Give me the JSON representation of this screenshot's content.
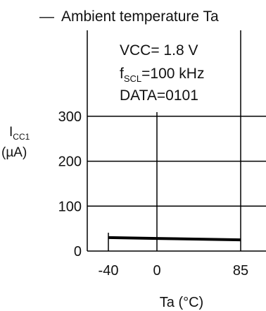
{
  "chart_data": {
    "type": "line",
    "title_dash": "—",
    "title": "Ambient temperature Ta",
    "annotation": {
      "vcc": "VCC= 1.8 V",
      "fscl_main": "f",
      "fscl_sub": "SCL",
      "fscl_rest": "=100 kHz",
      "data": "DATA=0101"
    },
    "ylabel_main": "I",
    "ylabel_sub": "CC1",
    "ylabel_unit": "(µA)",
    "xlabel": "Ta (°C)",
    "x_ticks": [
      {
        "value": -40,
        "label": "-40"
      },
      {
        "value": 0,
        "label": "0"
      },
      {
        "value": 85,
        "label": "85"
      }
    ],
    "y_ticks": [
      {
        "value": 0,
        "label": "0"
      },
      {
        "value": 100,
        "label": "100"
      },
      {
        "value": 200,
        "label": "200"
      },
      {
        "value": 300,
        "label": "300"
      }
    ],
    "ylim": [
      0,
      430
    ],
    "x_axis_scale": "piecewise (-40 to 0, 0 to 85 equally spaced)",
    "grid": true,
    "series": [
      {
        "x": [
          -40,
          0,
          85
        ],
        "y": [
          30,
          28,
          25
        ],
        "color": "#000000"
      }
    ]
  }
}
